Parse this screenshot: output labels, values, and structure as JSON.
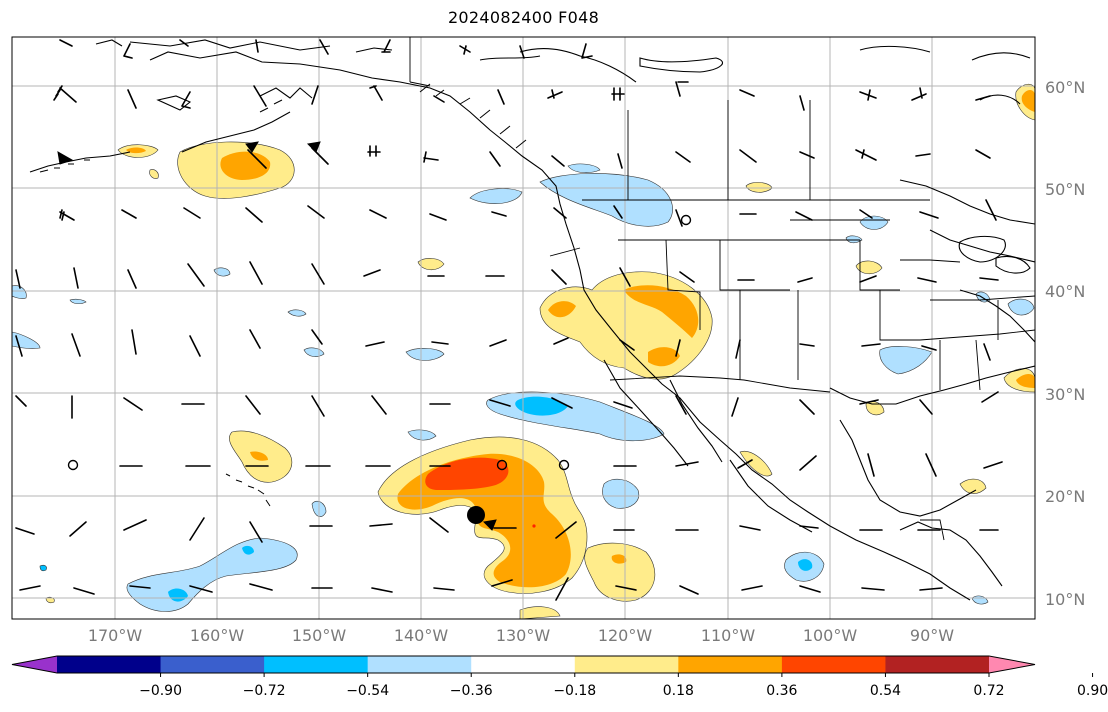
{
  "title": "2024082400 F048",
  "lat_labels": [
    "60°N",
    "50°N",
    "40°N",
    "30°N",
    "20°N",
    "10°N"
  ],
  "lon_labels": [
    "170°W",
    "160°W",
    "150°W",
    "140°W",
    "130°W",
    "120°W",
    "110°W",
    "100°W",
    "90°W"
  ],
  "colorbar": {
    "ticks": [
      "−0.90",
      "−0.72",
      "−0.54",
      "−0.36",
      "−0.18",
      "0.18",
      "0.36",
      "0.54",
      "0.72",
      "0.90"
    ],
    "colors": [
      "#9932cc",
      "#00008b",
      "#3a5fcd",
      "#00bfff",
      "#b0e0ff",
      "#ffffff",
      "#ffec8b",
      "#ffa500",
      "#ff4500",
      "#b22222",
      "#ff88b0"
    ]
  },
  "legend_colors": {
    "pos_light": "#ffec8b",
    "pos_mid": "#ffa500",
    "pos_dark": "#ff4500",
    "neg_light": "#b0e0ff",
    "neg_mid": "#00bfff"
  }
}
